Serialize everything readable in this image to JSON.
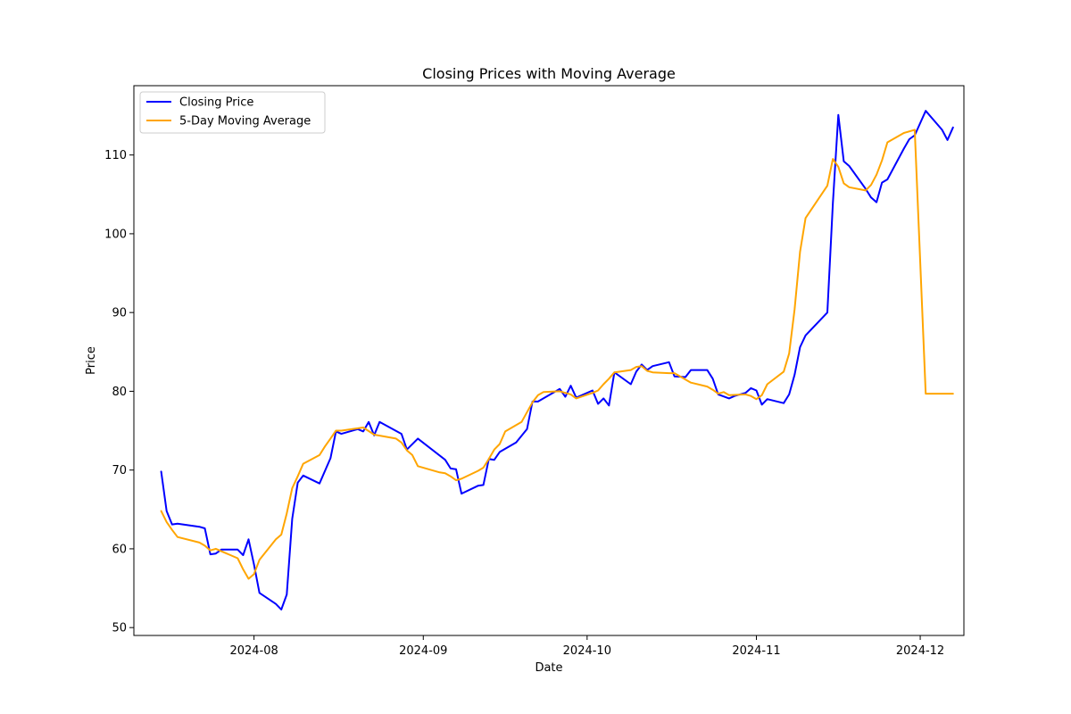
{
  "chart_data": {
    "type": "line",
    "title": "Closing Prices with Moving Average",
    "xlabel": "Date",
    "ylabel": "Price",
    "xlim": [
      "2024-07-10",
      "2024-12-09"
    ],
    "ylim": [
      49,
      118.8
    ],
    "x_ticks": [
      {
        "date": "2024-08-01",
        "label": "2024-08"
      },
      {
        "date": "2024-09-01",
        "label": "2024-09"
      },
      {
        "date": "2024-10-01",
        "label": "2024-10"
      },
      {
        "date": "2024-11-01",
        "label": "2024-11"
      },
      {
        "date": "2024-12-01",
        "label": "2024-12"
      }
    ],
    "y_ticks": [
      50,
      60,
      70,
      80,
      90,
      100,
      110
    ],
    "grid": false,
    "legend": "top-left",
    "series": [
      {
        "name": "Closing Price",
        "color": "#0000ff",
        "points": [
          [
            "2024-07-15",
            69.8
          ],
          [
            "2024-07-16",
            64.8
          ],
          [
            "2024-07-17",
            63.1
          ],
          [
            "2024-07-18",
            63.2
          ],
          [
            "2024-07-22",
            62.8
          ],
          [
            "2024-07-23",
            62.6
          ],
          [
            "2024-07-24",
            59.3
          ],
          [
            "2024-07-25",
            59.4
          ],
          [
            "2024-07-26",
            59.9
          ],
          [
            "2024-07-29",
            59.9
          ],
          [
            "2024-07-30",
            59.2
          ],
          [
            "2024-07-31",
            61.2
          ],
          [
            "2024-08-01",
            58.0
          ],
          [
            "2024-08-02",
            54.4
          ],
          [
            "2024-08-05",
            53.0
          ],
          [
            "2024-08-06",
            52.3
          ],
          [
            "2024-08-07",
            54.2
          ],
          [
            "2024-08-08",
            63.8
          ],
          [
            "2024-08-09",
            68.4
          ],
          [
            "2024-08-10",
            69.3
          ],
          [
            "2024-08-13",
            68.3
          ],
          [
            "2024-08-15",
            71.5
          ],
          [
            "2024-08-16",
            74.9
          ],
          [
            "2024-08-17",
            74.6
          ],
          [
            "2024-08-20",
            75.2
          ],
          [
            "2024-08-21",
            74.9
          ],
          [
            "2024-08-22",
            76.1
          ],
          [
            "2024-08-23",
            74.4
          ],
          [
            "2024-08-24",
            76.1
          ],
          [
            "2024-08-28",
            74.6
          ],
          [
            "2024-08-29",
            72.6
          ],
          [
            "2024-08-31",
            74.0
          ],
          [
            "2024-09-05",
            71.3
          ],
          [
            "2024-09-06",
            70.2
          ],
          [
            "2024-09-07",
            70.1
          ],
          [
            "2024-09-08",
            67.0
          ],
          [
            "2024-09-11",
            68.0
          ],
          [
            "2024-09-12",
            68.1
          ],
          [
            "2024-09-13",
            71.4
          ],
          [
            "2024-09-14",
            71.3
          ],
          [
            "2024-09-15",
            72.3
          ],
          [
            "2024-09-18",
            73.5
          ],
          [
            "2024-09-20",
            75.2
          ],
          [
            "2024-09-21",
            78.7
          ],
          [
            "2024-09-22",
            78.7
          ],
          [
            "2024-09-26",
            80.3
          ],
          [
            "2024-09-27",
            79.3
          ],
          [
            "2024-09-28",
            80.7
          ],
          [
            "2024-09-29",
            79.2
          ],
          [
            "2024-10-02",
            80.1
          ],
          [
            "2024-10-03",
            78.4
          ],
          [
            "2024-10-04",
            79.1
          ],
          [
            "2024-10-05",
            78.2
          ],
          [
            "2024-10-06",
            82.4
          ],
          [
            "2024-10-09",
            80.9
          ],
          [
            "2024-10-10",
            82.5
          ],
          [
            "2024-10-11",
            83.4
          ],
          [
            "2024-10-12",
            82.7
          ],
          [
            "2024-10-13",
            83.2
          ],
          [
            "2024-10-16",
            83.7
          ],
          [
            "2024-10-17",
            81.9
          ],
          [
            "2024-10-19",
            81.8
          ],
          [
            "2024-10-20",
            82.7
          ],
          [
            "2024-10-23",
            82.7
          ],
          [
            "2024-10-24",
            81.6
          ],
          [
            "2024-10-25",
            79.6
          ],
          [
            "2024-10-27",
            79.1
          ],
          [
            "2024-10-28",
            79.4
          ],
          [
            "2024-10-30",
            79.8
          ],
          [
            "2024-10-31",
            80.4
          ],
          [
            "2024-11-01",
            80.1
          ],
          [
            "2024-11-02",
            78.3
          ],
          [
            "2024-11-03",
            79.0
          ],
          [
            "2024-11-06",
            78.5
          ],
          [
            "2024-11-07",
            79.6
          ],
          [
            "2024-11-08",
            82.1
          ],
          [
            "2024-11-09",
            85.6
          ],
          [
            "2024-11-10",
            87.1
          ],
          [
            "2024-11-14",
            90.0
          ],
          [
            "2024-11-15",
            103.9
          ],
          [
            "2024-11-16",
            115.1
          ],
          [
            "2024-11-17",
            109.2
          ],
          [
            "2024-11-18",
            108.6
          ],
          [
            "2024-11-21",
            105.7
          ],
          [
            "2024-11-22",
            104.6
          ],
          [
            "2024-11-23",
            104.0
          ],
          [
            "2024-11-24",
            106.5
          ],
          [
            "2024-11-25",
            106.9
          ],
          [
            "2024-11-28",
            110.8
          ],
          [
            "2024-11-29",
            112.0
          ],
          [
            "2024-11-30",
            112.5
          ],
          [
            "2024-12-02",
            115.6
          ],
          [
            "2024-12-05",
            113.2
          ],
          [
            "2024-12-06",
            111.9
          ],
          [
            "2024-12-07",
            113.5
          ]
        ]
      },
      {
        "name": "5-Day Moving Average",
        "color": "#ffa500",
        "points": [
          [
            "2024-07-15",
            64.8
          ],
          [
            "2024-07-16",
            63.4
          ],
          [
            "2024-07-17",
            62.4
          ],
          [
            "2024-07-18",
            61.5
          ],
          [
            "2024-07-22",
            60.8
          ],
          [
            "2024-07-23",
            60.4
          ],
          [
            "2024-07-24",
            59.8
          ],
          [
            "2024-07-25",
            60.0
          ],
          [
            "2024-07-29",
            58.8
          ],
          [
            "2024-07-30",
            57.4
          ],
          [
            "2024-07-31",
            56.2
          ],
          [
            "2024-08-01",
            56.8
          ],
          [
            "2024-08-02",
            58.6
          ],
          [
            "2024-08-05",
            61.2
          ],
          [
            "2024-08-06",
            61.8
          ],
          [
            "2024-08-07",
            64.5
          ],
          [
            "2024-08-08",
            67.7
          ],
          [
            "2024-08-09",
            69.2
          ],
          [
            "2024-08-10",
            70.8
          ],
          [
            "2024-08-13",
            71.9
          ],
          [
            "2024-08-14",
            73.0
          ],
          [
            "2024-08-15",
            74.0
          ],
          [
            "2024-08-16",
            75.0
          ],
          [
            "2024-08-17",
            75.0
          ],
          [
            "2024-08-21",
            75.4
          ],
          [
            "2024-08-23",
            74.5
          ],
          [
            "2024-08-27",
            74.0
          ],
          [
            "2024-08-28",
            73.5
          ],
          [
            "2024-08-29",
            72.5
          ],
          [
            "2024-08-30",
            71.9
          ],
          [
            "2024-08-31",
            70.5
          ],
          [
            "2024-09-04",
            69.7
          ],
          [
            "2024-09-05",
            69.6
          ],
          [
            "2024-09-06",
            69.2
          ],
          [
            "2024-09-07",
            68.7
          ],
          [
            "2024-09-08",
            68.9
          ],
          [
            "2024-09-11",
            69.9
          ],
          [
            "2024-09-12",
            70.3
          ],
          [
            "2024-09-13",
            71.4
          ],
          [
            "2024-09-14",
            72.6
          ],
          [
            "2024-09-15",
            73.3
          ],
          [
            "2024-09-16",
            74.9
          ],
          [
            "2024-09-19",
            76.1
          ],
          [
            "2024-09-21",
            78.6
          ],
          [
            "2024-09-22",
            79.5
          ],
          [
            "2024-09-23",
            79.9
          ],
          [
            "2024-09-26",
            80.0
          ],
          [
            "2024-09-28",
            79.6
          ],
          [
            "2024-09-29",
            79.1
          ],
          [
            "2024-10-02",
            79.8
          ],
          [
            "2024-10-03",
            80.1
          ],
          [
            "2024-10-04",
            80.9
          ],
          [
            "2024-10-05",
            81.6
          ],
          [
            "2024-10-06",
            82.4
          ],
          [
            "2024-10-09",
            82.7
          ],
          [
            "2024-10-10",
            83.1
          ],
          [
            "2024-10-11",
            83.2
          ],
          [
            "2024-10-12",
            82.6
          ],
          [
            "2024-10-13",
            82.4
          ],
          [
            "2024-10-16",
            82.3
          ],
          [
            "2024-10-17",
            82.3
          ],
          [
            "2024-10-19",
            81.5
          ],
          [
            "2024-10-20",
            81.1
          ],
          [
            "2024-10-23",
            80.6
          ],
          [
            "2024-10-24",
            80.2
          ],
          [
            "2024-10-25",
            79.7
          ],
          [
            "2024-10-26",
            79.9
          ],
          [
            "2024-10-27",
            79.5
          ],
          [
            "2024-10-30",
            79.6
          ],
          [
            "2024-10-31",
            79.4
          ],
          [
            "2024-11-01",
            79.0
          ],
          [
            "2024-11-02",
            79.5
          ],
          [
            "2024-11-03",
            80.9
          ],
          [
            "2024-11-06",
            82.5
          ],
          [
            "2024-11-07",
            84.8
          ],
          [
            "2024-11-08",
            90.4
          ],
          [
            "2024-11-09",
            97.7
          ],
          [
            "2024-11-10",
            102.0
          ],
          [
            "2024-11-14",
            106.1
          ],
          [
            "2024-11-15",
            109.5
          ],
          [
            "2024-11-16",
            108.5
          ],
          [
            "2024-11-17",
            106.4
          ],
          [
            "2024-11-18",
            105.9
          ],
          [
            "2024-11-21",
            105.5
          ],
          [
            "2024-11-22",
            106.2
          ],
          [
            "2024-11-23",
            107.5
          ],
          [
            "2024-11-24",
            109.3
          ],
          [
            "2024-11-25",
            111.6
          ],
          [
            "2024-11-28",
            112.8
          ],
          [
            "2024-11-30",
            113.2
          ],
          [
            "2024-12-02",
            79.7
          ],
          [
            "2024-12-07",
            79.7
          ]
        ]
      }
    ]
  }
}
